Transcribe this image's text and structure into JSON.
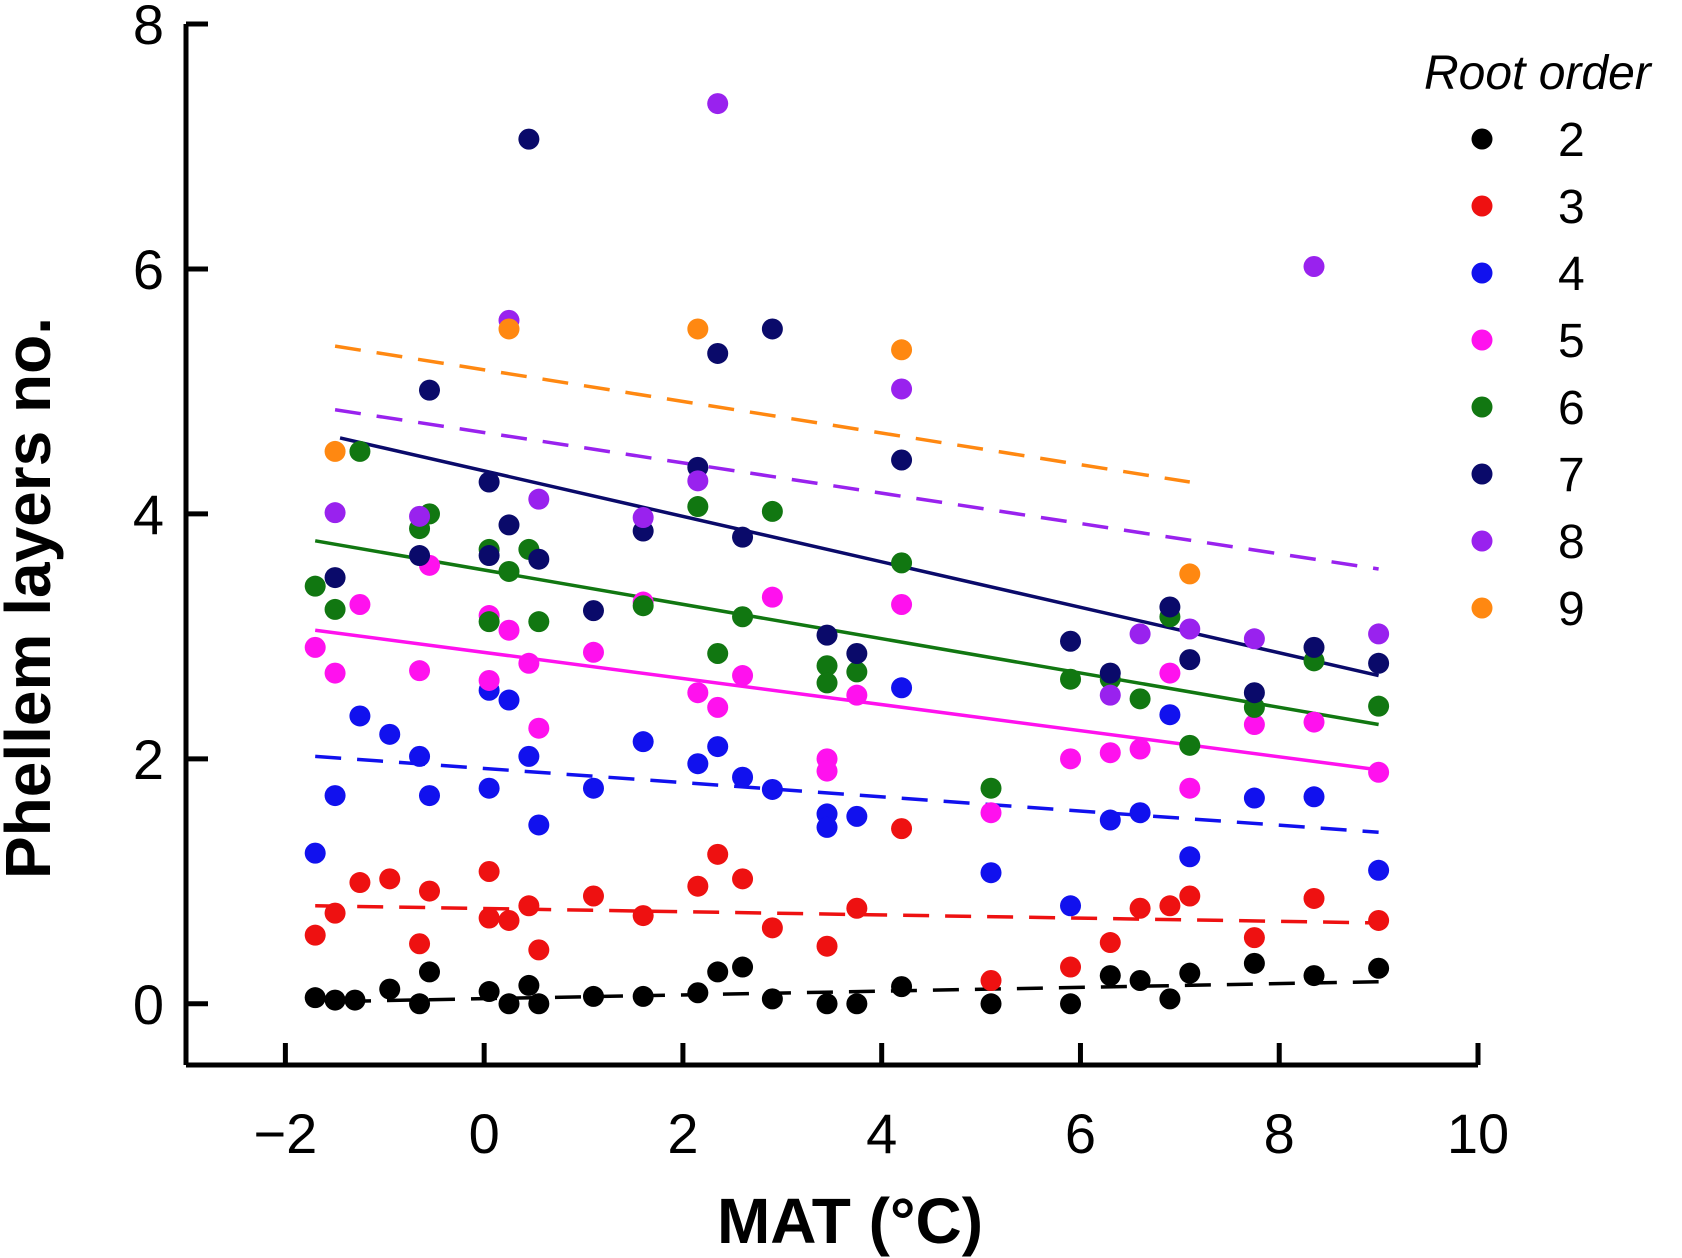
{
  "chart_data": {
    "type": "scatter",
    "xlabel": "MAT (°C)",
    "ylabel": "Phellem layers no.",
    "xlim": [
      -3,
      10
    ],
    "ylim": [
      -0.5,
      8
    ],
    "x_ticks": [
      -2,
      0,
      2,
      4,
      6,
      8,
      10
    ],
    "y_ticks": [
      0,
      2,
      4,
      6,
      8
    ],
    "x_tick_labels": [
      "−2",
      "0",
      "2",
      "4",
      "6",
      "8",
      "10"
    ],
    "y_tick_labels": [
      "0",
      "2",
      "4",
      "6",
      "8"
    ],
    "grid": false,
    "legend": {
      "title": "Root order",
      "position": "top-right"
    },
    "series": [
      {
        "name": "2",
        "color": "#000000",
        "trend": {
          "style": "dashed",
          "x": [
            -1.4,
            9.0
          ],
          "y": [
            0.02,
            0.18
          ]
        },
        "points": [
          [
            -1.7,
            0.05
          ],
          [
            -1.5,
            0.03
          ],
          [
            -1.3,
            0.03
          ],
          [
            -0.95,
            0.12
          ],
          [
            -0.65,
            0.0
          ],
          [
            -0.55,
            0.26
          ],
          [
            0.05,
            0.1
          ],
          [
            0.25,
            0.0
          ],
          [
            0.45,
            0.15
          ],
          [
            0.55,
            0.0
          ],
          [
            1.1,
            0.06
          ],
          [
            1.6,
            0.06
          ],
          [
            2.15,
            0.09
          ],
          [
            2.35,
            0.26
          ],
          [
            2.6,
            0.3
          ],
          [
            2.9,
            0.04
          ],
          [
            3.45,
            0.0
          ],
          [
            3.75,
            0.0
          ],
          [
            4.2,
            0.14
          ],
          [
            5.1,
            0.0
          ],
          [
            5.9,
            0.0
          ],
          [
            6.3,
            0.23
          ],
          [
            6.6,
            0.19
          ],
          [
            6.9,
            0.04
          ],
          [
            7.1,
            0.25
          ],
          [
            7.75,
            0.33
          ],
          [
            8.35,
            0.23
          ],
          [
            9.0,
            0.29
          ]
        ]
      },
      {
        "name": "3",
        "color": "#ee1111",
        "trend": {
          "style": "dashed",
          "x": [
            -1.7,
            9.0
          ],
          "y": [
            0.8,
            0.66
          ]
        },
        "points": [
          [
            -1.7,
            0.56
          ],
          [
            -1.5,
            0.74
          ],
          [
            -1.25,
            0.99
          ],
          [
            -0.95,
            1.02
          ],
          [
            -0.65,
            0.49
          ],
          [
            -0.55,
            0.92
          ],
          [
            0.05,
            1.08
          ],
          [
            0.05,
            0.7
          ],
          [
            0.25,
            0.68
          ],
          [
            0.45,
            0.8
          ],
          [
            0.55,
            0.44
          ],
          [
            1.1,
            0.88
          ],
          [
            1.6,
            0.72
          ],
          [
            2.15,
            0.96
          ],
          [
            2.35,
            1.22
          ],
          [
            2.6,
            1.02
          ],
          [
            2.9,
            0.62
          ],
          [
            3.45,
            0.47
          ],
          [
            3.75,
            0.78
          ],
          [
            4.2,
            1.43
          ],
          [
            5.1,
            0.19
          ],
          [
            5.9,
            0.3
          ],
          [
            6.3,
            0.5
          ],
          [
            6.6,
            0.78
          ],
          [
            6.9,
            0.8
          ],
          [
            7.1,
            0.88
          ],
          [
            7.75,
            0.54
          ],
          [
            8.35,
            0.86
          ],
          [
            9.0,
            0.68
          ]
        ]
      },
      {
        "name": "4",
        "color": "#1111ee",
        "trend": {
          "style": "dashed",
          "x": [
            -1.7,
            9.0
          ],
          "y": [
            2.02,
            1.4
          ]
        },
        "points": [
          [
            -1.7,
            1.23
          ],
          [
            -1.5,
            1.7
          ],
          [
            -1.25,
            2.35
          ],
          [
            -0.95,
            2.2
          ],
          [
            -0.65,
            2.02
          ],
          [
            -0.55,
            1.7
          ],
          [
            0.05,
            2.56
          ],
          [
            0.05,
            1.76
          ],
          [
            0.25,
            2.48
          ],
          [
            0.45,
            2.02
          ],
          [
            0.55,
            1.46
          ],
          [
            1.1,
            1.76
          ],
          [
            1.6,
            2.14
          ],
          [
            2.15,
            1.96
          ],
          [
            2.35,
            2.1
          ],
          [
            2.6,
            1.85
          ],
          [
            2.9,
            1.75
          ],
          [
            3.45,
            1.55
          ],
          [
            3.45,
            1.44
          ],
          [
            3.75,
            1.53
          ],
          [
            4.2,
            2.58
          ],
          [
            5.1,
            1.07
          ],
          [
            5.9,
            0.8
          ],
          [
            6.3,
            1.5
          ],
          [
            6.6,
            1.56
          ],
          [
            6.9,
            2.36
          ],
          [
            7.1,
            1.2
          ],
          [
            7.75,
            1.68
          ],
          [
            8.35,
            1.69
          ],
          [
            9.0,
            1.09
          ]
        ]
      },
      {
        "name": "5",
        "color": "#ff11ee",
        "trend": {
          "style": "solid",
          "x": [
            -1.7,
            9.0
          ],
          "y": [
            3.05,
            1.91
          ]
        },
        "points": [
          [
            -1.7,
            2.91
          ],
          [
            -1.5,
            2.7
          ],
          [
            -1.25,
            3.26
          ],
          [
            -0.65,
            2.72
          ],
          [
            -0.55,
            3.58
          ],
          [
            0.05,
            2.64
          ],
          [
            0.05,
            3.17
          ],
          [
            0.25,
            3.05
          ],
          [
            0.45,
            2.78
          ],
          [
            0.55,
            2.25
          ],
          [
            1.1,
            2.87
          ],
          [
            1.6,
            3.28
          ],
          [
            2.15,
            2.54
          ],
          [
            2.35,
            2.42
          ],
          [
            2.6,
            2.68
          ],
          [
            2.9,
            3.32
          ],
          [
            3.45,
            2.0
          ],
          [
            3.45,
            1.9
          ],
          [
            3.75,
            2.52
          ],
          [
            4.2,
            3.26
          ],
          [
            5.1,
            1.56
          ],
          [
            5.9,
            2.0
          ],
          [
            6.3,
            2.05
          ],
          [
            6.6,
            2.08
          ],
          [
            6.9,
            2.7
          ],
          [
            7.1,
            1.76
          ],
          [
            7.75,
            2.28
          ],
          [
            8.35,
            2.3
          ],
          [
            9.0,
            1.89
          ]
        ]
      },
      {
        "name": "6",
        "color": "#117711",
        "trend": {
          "style": "solid",
          "x": [
            -1.7,
            9.0
          ],
          "y": [
            3.78,
            2.28
          ]
        },
        "points": [
          [
            -1.7,
            3.41
          ],
          [
            -1.5,
            3.22
          ],
          [
            -1.25,
            4.51
          ],
          [
            -0.65,
            3.88
          ],
          [
            -0.55,
            4.0
          ],
          [
            0.05,
            3.71
          ],
          [
            0.05,
            3.12
          ],
          [
            0.25,
            3.53
          ],
          [
            0.45,
            3.71
          ],
          [
            0.55,
            3.12
          ],
          [
            1.6,
            3.25
          ],
          [
            2.15,
            4.06
          ],
          [
            2.35,
            2.86
          ],
          [
            2.6,
            3.16
          ],
          [
            2.9,
            4.02
          ],
          [
            3.45,
            2.76
          ],
          [
            3.45,
            2.62
          ],
          [
            3.75,
            2.71
          ],
          [
            4.2,
            3.6
          ],
          [
            5.1,
            1.76
          ],
          [
            5.9,
            2.65
          ],
          [
            6.3,
            2.65
          ],
          [
            6.6,
            2.49
          ],
          [
            6.9,
            3.16
          ],
          [
            7.1,
            2.11
          ],
          [
            7.75,
            2.42
          ],
          [
            8.35,
            2.8
          ],
          [
            9.0,
            2.43
          ]
        ]
      },
      {
        "name": "7",
        "color": "#0a0a6a",
        "trend": {
          "style": "solid",
          "x": [
            -1.45,
            9.0
          ],
          "y": [
            4.62,
            2.68
          ]
        },
        "points": [
          [
            -1.5,
            3.48
          ],
          [
            -0.65,
            3.66
          ],
          [
            -0.55,
            5.01
          ],
          [
            0.05,
            4.26
          ],
          [
            0.05,
            3.66
          ],
          [
            0.25,
            3.91
          ],
          [
            0.45,
            7.06
          ],
          [
            0.55,
            3.63
          ],
          [
            1.1,
            3.21
          ],
          [
            1.6,
            3.86
          ],
          [
            2.15,
            4.38
          ],
          [
            2.35,
            5.31
          ],
          [
            2.6,
            3.81
          ],
          [
            2.9,
            5.51
          ],
          [
            3.45,
            3.01
          ],
          [
            3.75,
            2.86
          ],
          [
            4.2,
            4.44
          ],
          [
            5.9,
            2.96
          ],
          [
            6.3,
            2.7
          ],
          [
            6.9,
            3.24
          ],
          [
            7.1,
            2.81
          ],
          [
            7.75,
            2.54
          ],
          [
            8.35,
            2.91
          ],
          [
            9.0,
            2.78
          ]
        ]
      },
      {
        "name": "8",
        "color": "#9922ee",
        "trend": {
          "style": "dashed",
          "x": [
            -1.5,
            9.0
          ],
          "y": [
            4.85,
            3.55
          ]
        },
        "points": [
          [
            -1.5,
            4.01
          ],
          [
            -0.65,
            3.98
          ],
          [
            0.25,
            5.58
          ],
          [
            0.55,
            4.12
          ],
          [
            1.6,
            3.97
          ],
          [
            2.15,
            4.27
          ],
          [
            2.35,
            7.35
          ],
          [
            4.2,
            5.02
          ],
          [
            6.3,
            2.52
          ],
          [
            6.6,
            3.02
          ],
          [
            7.1,
            3.06
          ],
          [
            7.75,
            2.98
          ],
          [
            8.35,
            6.02
          ],
          [
            9.0,
            3.02
          ]
        ]
      },
      {
        "name": "9",
        "color": "#ff8811",
        "trend": {
          "style": "dashed",
          "x": [
            -1.5,
            7.1
          ],
          "y": [
            5.37,
            4.26
          ]
        },
        "points": [
          [
            -1.5,
            4.51
          ],
          [
            0.25,
            5.51
          ],
          [
            2.15,
            5.51
          ],
          [
            4.2,
            5.34
          ],
          [
            7.1,
            3.51
          ]
        ]
      }
    ]
  }
}
